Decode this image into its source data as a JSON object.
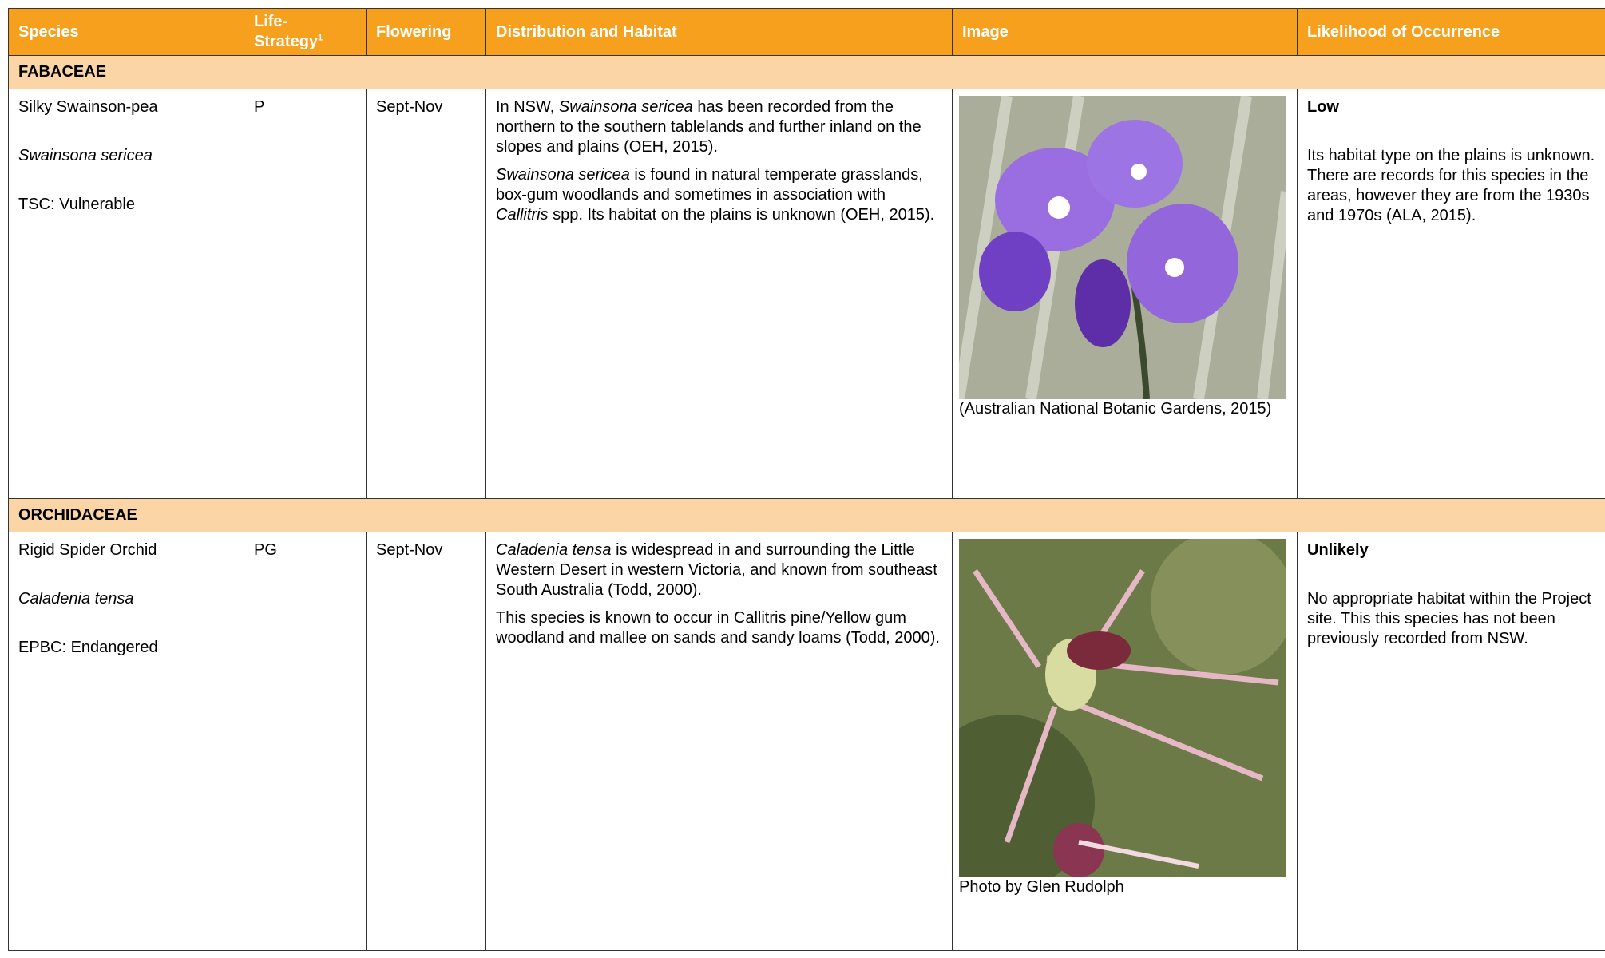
{
  "header": {
    "columns": [
      {
        "text": "Species"
      },
      {
        "text": "Life-Strategy",
        "sup": "1"
      },
      {
        "text": "Flowering"
      },
      {
        "text": "Distribution and Habitat"
      },
      {
        "text": "Image"
      },
      {
        "text": "Likelihood of Occurrence"
      }
    ]
  },
  "sections": [
    {
      "family": "FABACEAE",
      "rows": [
        {
          "species": [
            {
              "text": "Silky Swainson-pea"
            },
            {
              "text": "Swainsona sericea",
              "i": true
            },
            {
              "text": "TSC: Vulnerable"
            }
          ],
          "life_strategy": "P",
          "flowering": "Sept-Nov",
          "distribution": [
            [
              {
                "text": "In NSW, "
              },
              {
                "text": "Swainsona sericea",
                "i": true
              },
              {
                "text": " has been recorded from the northern to the southern tablelands and further inland on the slopes and plains (OEH, 2015)."
              }
            ],
            [
              {
                "text": "Swainsona sericea",
                "i": true
              },
              {
                "text": " is found in natural temperate grasslands, box-gum woodlands and sometimes in association with "
              },
              {
                "text": "Callitris",
                "i": true
              },
              {
                "text": " spp. Its habitat on the plains is unknown (OEH, 2015)."
              }
            ]
          ],
          "image_caption": "(Australian National Botanic Gardens, 2015)",
          "likelihood": {
            "rating": "Low",
            "note": "Its habitat type on the plains is unknown. There are records for this species in the areas, however they are from the 1930s and 1970s (ALA, 2015)."
          }
        }
      ]
    },
    {
      "family": "ORCHIDACEAE",
      "rows": [
        {
          "species": [
            {
              "text": "Rigid Spider Orchid"
            },
            {
              "text": "Caladenia tensa",
              "i": true
            },
            {
              "text": "EPBC: Endangered"
            }
          ],
          "life_strategy": "PG",
          "flowering": "Sept-Nov",
          "distribution": [
            [
              {
                "text": "Caladenia tensa",
                "i": true
              },
              {
                "text": " is widespread in and surrounding the Little Western Desert in western Victoria, and known from southeast South Australia (Todd, 2000)."
              }
            ],
            [
              {
                "text": "This species is known to occur in Callitris pine/Yellow gum woodland and mallee on sands and sandy loams (Todd, 2000)."
              }
            ]
          ],
          "image_caption": "Photo by Glen Rudolph",
          "likelihood": {
            "rating": "Unlikely",
            "note": "No appropriate habitat within the Project site. This this species has not been previously recorded from NSW."
          }
        }
      ]
    }
  ]
}
